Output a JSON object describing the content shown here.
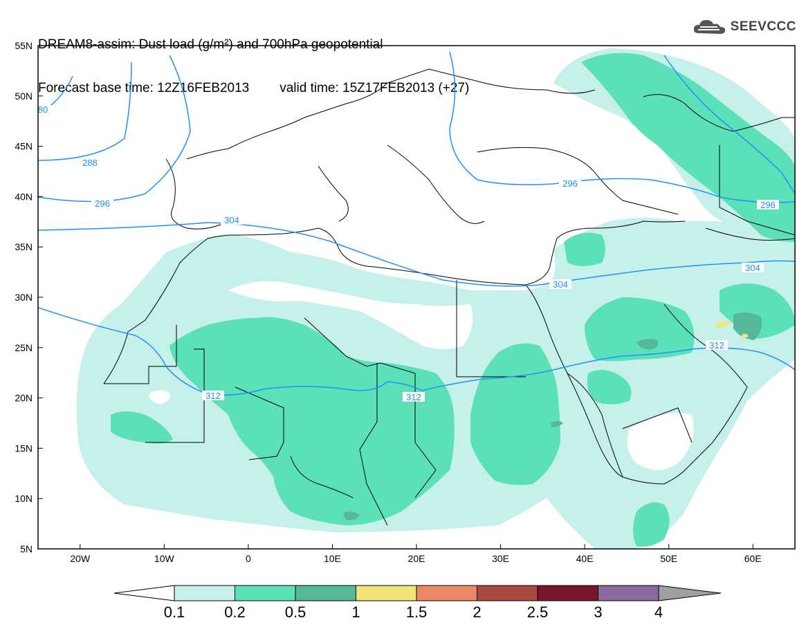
{
  "header": {
    "line1": "DREAM8-assim: Dust load (g/m²) and 700hPa geopotential",
    "base_label": "Forecast base time: 12Z16FEB2013",
    "valid_label": "valid time: 15Z17FEB2013 (+27)"
  },
  "logo": {
    "text": "SEEVCCC",
    "icon": "cloud-icon"
  },
  "map": {
    "lon_range": [
      -25,
      65
    ],
    "lat_range": [
      5,
      55
    ],
    "lat_ticks": [
      "55N",
      "50N",
      "45N",
      "40N",
      "35N",
      "30N",
      "25N",
      "20N",
      "15N",
      "10N",
      "5N"
    ],
    "lon_ticks": [
      "20W",
      "10W",
      "0",
      "10E",
      "20E",
      "30E",
      "40E",
      "50E",
      "60E"
    ],
    "contour_labels": [
      "80",
      "288",
      "296",
      "304",
      "296",
      "304",
      "304",
      "312",
      "312",
      "312",
      "296"
    ]
  },
  "legend": {
    "labels": [
      "0.1",
      "0.2",
      "0.5",
      "1",
      "1.5",
      "2",
      "2.5",
      "3",
      "4"
    ],
    "colors": [
      "#c6f0ea",
      "#5ce0b8",
      "#55b898",
      "#f0e678",
      "#e88a68",
      "#a84a40",
      "#781830",
      "#8c6aa0",
      "#a0a0a0"
    ]
  },
  "colors": {
    "contour": "#1e90ff",
    "border": "#000000"
  }
}
